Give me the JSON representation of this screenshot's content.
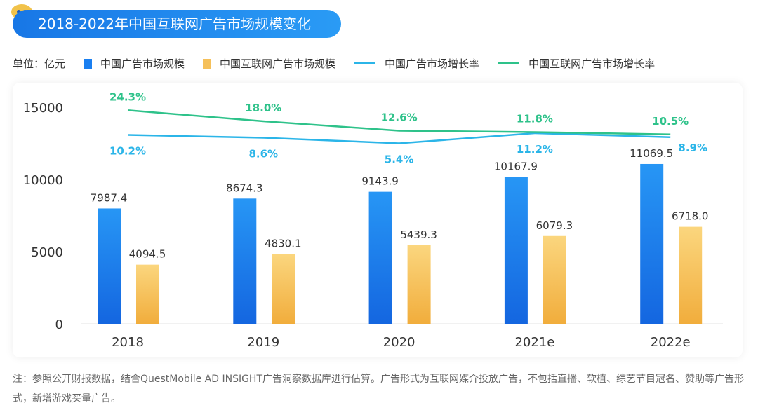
{
  "title": "2018-2022年中国互联网广告市场规模变化",
  "unit_label": "单位：亿元",
  "colors": {
    "bar1": "#1a7ff0",
    "bar2": "#f5c05a",
    "line1": "#2bb5e8",
    "line2": "#2ec28a",
    "title_bg": "#1e88ee"
  },
  "chart_data": {
    "type": "bar+line",
    "title": "2018-2022年中国互联网广告市场规模变化",
    "categories": [
      "2018",
      "2019",
      "2020",
      "2021e",
      "2022e"
    ],
    "y_ticks": [
      "0",
      "5000",
      "10000",
      "15000"
    ],
    "ylim": [
      0,
      15000
    ],
    "grid": false,
    "legend_placement": "top",
    "series": [
      {
        "name": "中国广告市场规模",
        "type": "bar",
        "values": [
          7987.4,
          8674.3,
          9143.9,
          10167.9,
          11069.5
        ],
        "labels": [
          "7987.4",
          "8674.3",
          "9143.9",
          "10167.9",
          "11069.5"
        ]
      },
      {
        "name": "中国互联网广告市场规模",
        "type": "bar",
        "values": [
          4094.5,
          4830.1,
          5439.3,
          6079.3,
          6718.0
        ],
        "labels": [
          "4094.5",
          "4830.1",
          "5439.3",
          "6079.3",
          "6718.0"
        ]
      },
      {
        "name": "中国广告市场增长率",
        "type": "line",
        "unit": "%",
        "values": [
          10.2,
          8.6,
          5.4,
          11.2,
          8.9
        ],
        "labels": [
          "10.2%",
          "8.6%",
          "5.4%",
          "11.2%",
          "8.9%"
        ]
      },
      {
        "name": "中国互联网广告市场增长率",
        "type": "line",
        "unit": "%",
        "values": [
          24.3,
          18.0,
          12.6,
          11.8,
          10.5
        ],
        "labels": [
          "24.3%",
          "18.0%",
          "12.6%",
          "11.8%",
          "10.5%"
        ]
      }
    ]
  },
  "note": "注：参照公开财报数据，结合QuestMobile AD INSIGHT广告洞察数据库进行估算。广告形式为互联网媒介投放广告，不包括直播、软植、综艺节目冠名、赞助等广告形式，新增游戏买量广告。"
}
